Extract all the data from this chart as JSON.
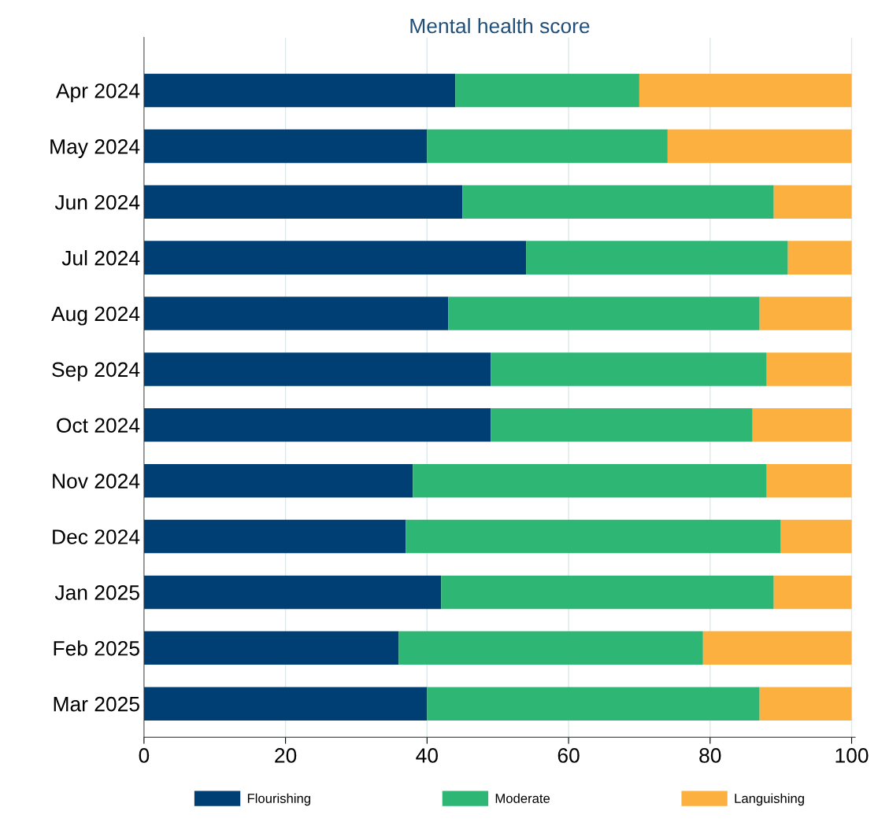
{
  "chart_data": {
    "type": "bar",
    "orientation": "horizontal",
    "stacked": true,
    "title": "Mental health score",
    "categories": [
      "Apr 2024",
      "May 2024",
      "Jun 2024",
      "Jul 2024",
      "Aug 2024",
      "Sep 2024",
      "Oct 2024",
      "Nov 2024",
      "Dec 2024",
      "Jan 2025",
      "Feb 2025",
      "Mar 2025"
    ],
    "series": [
      {
        "name": "Flourishing",
        "color": "#003f74",
        "values": [
          44,
          40,
          45,
          54,
          43,
          49,
          49,
          38,
          37,
          42,
          36,
          40
        ]
      },
      {
        "name": "Moderate",
        "color": "#2db674",
        "values": [
          26,
          34,
          44,
          37,
          44,
          39,
          37,
          50,
          53,
          47,
          43,
          47
        ]
      },
      {
        "name": "Languishing",
        "color": "#fbb040",
        "values": [
          30,
          26,
          11,
          9,
          13,
          12,
          14,
          12,
          10,
          11,
          21,
          13
        ]
      }
    ],
    "xlim": [
      0,
      100.5
    ],
    "xticks": [
      0,
      20,
      40,
      60,
      80,
      100
    ],
    "grid": "x",
    "legend": "bottom"
  }
}
